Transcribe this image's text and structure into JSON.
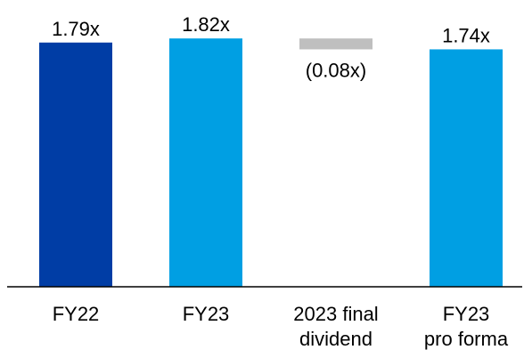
{
  "chart_data": {
    "type": "waterfall",
    "categories": [
      [
        "FY22"
      ],
      [
        "FY23"
      ],
      [
        "2023 final",
        "dividend"
      ],
      [
        "FY23",
        "pro forma"
      ]
    ],
    "values": [
      1.79,
      1.82,
      -0.08,
      1.74
    ],
    "value_labels": [
      "1.79x",
      "1.82x",
      "(0.08x)",
      "1.74x"
    ],
    "bar_kinds": [
      "total",
      "total",
      "change",
      "total"
    ],
    "colors": {
      "FY22": "#003da5",
      "FY23": "#009fe3",
      "change": "#bfbfbf",
      "FY23 pro forma": "#009fe3",
      "axis": "#000000"
    },
    "grid": false,
    "legend": "none"
  }
}
